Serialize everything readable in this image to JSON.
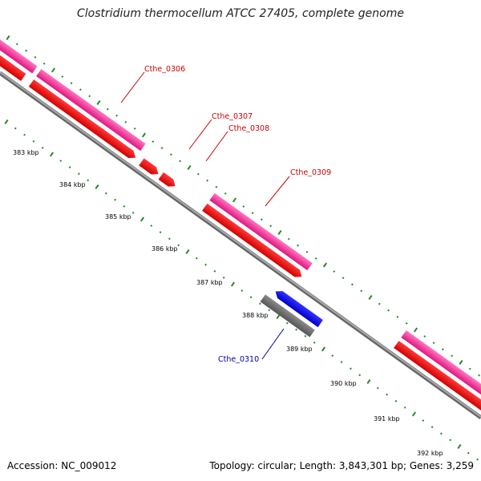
{
  "title": "Clostridium thermocellum ATCC 27405, complete genome",
  "footer": {
    "accession": "Accession: NC_009012",
    "summary": "Topology: circular; Length: 3,843,301 bp; Genes: 3,259"
  },
  "colors": {
    "cds_pink": "#ff3399",
    "gene_red": "#ff0000",
    "gene_blue": "#0000ff",
    "gene_gray": "#666666",
    "backbone": "#888888",
    "tick_green": "#228822",
    "label_red": "#cc0000",
    "label_blue": "#000099"
  },
  "scale": {
    "unit": "kbp",
    "ticks": [
      "383 kbp",
      "384 kbp",
      "385 kbp",
      "386 kbp",
      "387 kbp",
      "388 kbp",
      "389 kbp",
      "390 kbp",
      "391 kbp",
      "392 kbp"
    ]
  },
  "genes": [
    {
      "name": "Cthe_0306",
      "strand": "forward"
    },
    {
      "name": "Cthe_0307",
      "strand": "forward"
    },
    {
      "name": "Cthe_0308",
      "strand": "forward"
    },
    {
      "name": "Cthe_0309",
      "strand": "forward"
    },
    {
      "name": "Cthe_0310",
      "strand": "reverse"
    }
  ]
}
